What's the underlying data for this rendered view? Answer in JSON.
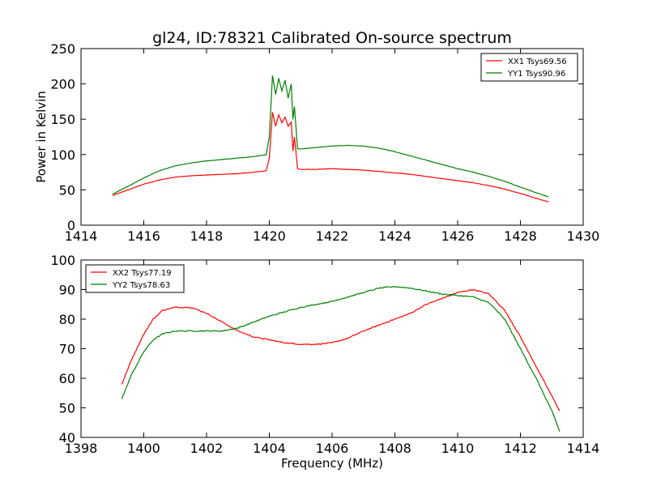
{
  "chart_data": [
    {
      "type": "line",
      "title": "gl24, ID:78321 Calibrated On-source spectrum",
      "xlabel": "",
      "ylabel": "Power in Kelvin",
      "xlim": [
        1414,
        1430
      ],
      "ylim": [
        0,
        250
      ],
      "xticks": [
        "1414",
        "1416",
        "1418",
        "1420",
        "1422",
        "1424",
        "1426",
        "1428",
        "1430"
      ],
      "yticks": [
        "0",
        "50",
        "100",
        "150",
        "200",
        "250"
      ],
      "grid": false,
      "legend_position": "top-right",
      "series": [
        {
          "name": "XX1 Tsys69.56",
          "color": "#ff0000",
          "x": [
            1415.0,
            1415.5,
            1416.0,
            1416.5,
            1417.0,
            1417.5,
            1418.0,
            1418.5,
            1419.0,
            1419.5,
            1419.9,
            1420.0,
            1420.1,
            1420.2,
            1420.3,
            1420.4,
            1420.5,
            1420.6,
            1420.7,
            1420.75,
            1420.8,
            1420.9,
            1421.0,
            1421.5,
            1422.0,
            1422.5,
            1423.0,
            1423.5,
            1424.0,
            1424.5,
            1425.0,
            1425.5,
            1426.0,
            1426.5,
            1427.0,
            1427.5,
            1428.0,
            1428.5,
            1428.9
          ],
          "y": [
            42,
            50,
            58,
            64,
            68,
            70,
            71,
            72,
            73,
            75,
            77,
            95,
            160,
            140,
            156,
            145,
            153,
            140,
            146,
            105,
            125,
            80,
            79,
            79,
            80,
            79,
            78,
            76,
            74,
            72,
            69,
            66,
            63,
            60,
            56,
            51,
            45,
            38,
            33
          ]
        },
        {
          "name": "YY1 Tsys90.96",
          "color": "#008000",
          "x": [
            1415.0,
            1415.5,
            1416.0,
            1416.5,
            1417.0,
            1417.5,
            1418.0,
            1418.5,
            1419.0,
            1419.5,
            1419.9,
            1420.0,
            1420.1,
            1420.2,
            1420.3,
            1420.4,
            1420.5,
            1420.6,
            1420.7,
            1420.75,
            1420.8,
            1420.9,
            1421.0,
            1421.5,
            1422.0,
            1422.5,
            1423.0,
            1423.5,
            1424.0,
            1424.5,
            1425.0,
            1425.5,
            1426.0,
            1426.5,
            1427.0,
            1427.5,
            1428.0,
            1428.5,
            1428.9
          ],
          "y": [
            44,
            55,
            67,
            77,
            84,
            88,
            91,
            93,
            95,
            97,
            100,
            125,
            212,
            185,
            208,
            190,
            205,
            180,
            200,
            150,
            168,
            108,
            108,
            110,
            112,
            113,
            112,
            109,
            104,
            98,
            92,
            86,
            80,
            75,
            69,
            62,
            54,
            46,
            40
          ]
        }
      ]
    },
    {
      "type": "line",
      "title": "",
      "xlabel": "Frequency (MHz)",
      "ylabel": "",
      "xlim": [
        1398,
        1414
      ],
      "ylim": [
        40,
        100
      ],
      "xticks": [
        "1398",
        "1400",
        "1402",
        "1404",
        "1406",
        "1408",
        "1410",
        "1412",
        "1414"
      ],
      "yticks": [
        "40",
        "50",
        "60",
        "70",
        "80",
        "90",
        "100"
      ],
      "grid": false,
      "legend_position": "top-left",
      "series": [
        {
          "name": "XX2 Tsys77.19",
          "color": "#ff0000",
          "x": [
            1399.3,
            1399.6,
            1400.0,
            1400.3,
            1400.6,
            1401.0,
            1401.5,
            1402.0,
            1402.5,
            1403.0,
            1403.5,
            1404.0,
            1404.5,
            1405.0,
            1405.5,
            1406.0,
            1406.5,
            1407.0,
            1407.5,
            1408.0,
            1408.5,
            1409.0,
            1409.5,
            1410.0,
            1410.5,
            1411.0,
            1411.5,
            1412.0,
            1412.5,
            1413.0,
            1413.25
          ],
          "y": [
            58,
            66,
            75,
            80,
            83,
            84,
            84,
            82,
            79,
            76,
            74,
            73,
            72,
            71.5,
            71.5,
            72,
            73.5,
            76,
            78,
            80,
            82,
            85,
            87,
            89,
            90,
            88.5,
            83,
            74,
            64,
            54,
            49
          ]
        },
        {
          "name": "YY2 Tsys78.63",
          "color": "#008000",
          "x": [
            1399.3,
            1399.6,
            1400.0,
            1400.3,
            1400.6,
            1401.0,
            1401.5,
            1402.0,
            1402.5,
            1403.0,
            1403.5,
            1404.0,
            1404.5,
            1405.0,
            1405.5,
            1406.0,
            1406.5,
            1407.0,
            1407.5,
            1408.0,
            1408.5,
            1409.0,
            1409.5,
            1410.0,
            1410.5,
            1411.0,
            1411.5,
            1412.0,
            1412.5,
            1413.0,
            1413.25
          ],
          "y": [
            53,
            61,
            69,
            73,
            75,
            76,
            76,
            76,
            76,
            77,
            79,
            81,
            82.5,
            84,
            85,
            86,
            87.5,
            89,
            90.5,
            91,
            90.5,
            89.5,
            88.5,
            88,
            87.5,
            85.5,
            80,
            70,
            60,
            49,
            42
          ]
        }
      ]
    }
  ]
}
